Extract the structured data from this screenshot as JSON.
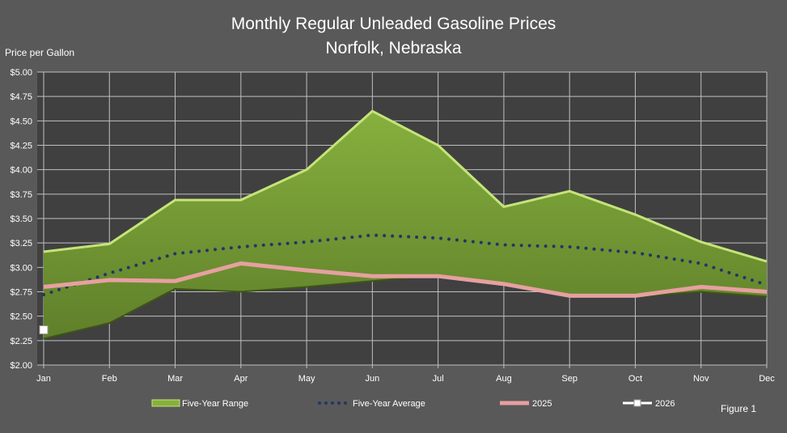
{
  "chart_data": {
    "type": "area",
    "title": "Monthly Regular Unleaded Gasoline Prices",
    "subtitle": "Norfolk, Nebraska",
    "ylabel": "Price per Gallon",
    "xlabel": "",
    "categories": [
      "Jan",
      "Feb",
      "Mar",
      "Apr",
      "May",
      "Jun",
      "Jul",
      "Aug",
      "Sep",
      "Oct",
      "Nov",
      "Dec"
    ],
    "ylim": [
      2.0,
      5.0
    ],
    "yticks": [
      "$2.00",
      "$2.25",
      "$2.50",
      "$2.75",
      "$3.00",
      "$3.25",
      "$3.50",
      "$3.75",
      "$4.00",
      "$4.25",
      "$4.50",
      "$4.75",
      "$5.00"
    ],
    "grid": true,
    "legend": "bottom",
    "series": [
      {
        "name": "Five-Year Range",
        "kind": "range",
        "color": "#7fa33a",
        "high": [
          3.16,
          3.24,
          3.69,
          3.69,
          4.0,
          4.6,
          4.25,
          3.62,
          3.78,
          3.54,
          3.26,
          3.06
        ],
        "low": [
          2.27,
          2.43,
          2.78,
          2.75,
          2.8,
          2.86,
          2.92,
          2.82,
          2.7,
          2.7,
          2.75,
          2.7
        ]
      },
      {
        "name": "Five-Year Average",
        "kind": "dotted",
        "color": "#1f3864",
        "values": [
          2.72,
          2.94,
          3.14,
          3.21,
          3.26,
          3.33,
          3.3,
          3.23,
          3.21,
          3.15,
          3.04,
          2.82
        ]
      },
      {
        "name": "2025",
        "kind": "line",
        "color": "#e6a0a0",
        "values": [
          2.8,
          2.87,
          2.86,
          3.04,
          2.97,
          2.91,
          2.91,
          2.83,
          2.71,
          2.71,
          2.8,
          2.75
        ]
      },
      {
        "name": "2026",
        "kind": "marker",
        "color": "#ffffff",
        "values": [
          2.36,
          null,
          null,
          null,
          null,
          null,
          null,
          null,
          null,
          null,
          null,
          null
        ]
      }
    ],
    "annotation": "Figure 1"
  }
}
